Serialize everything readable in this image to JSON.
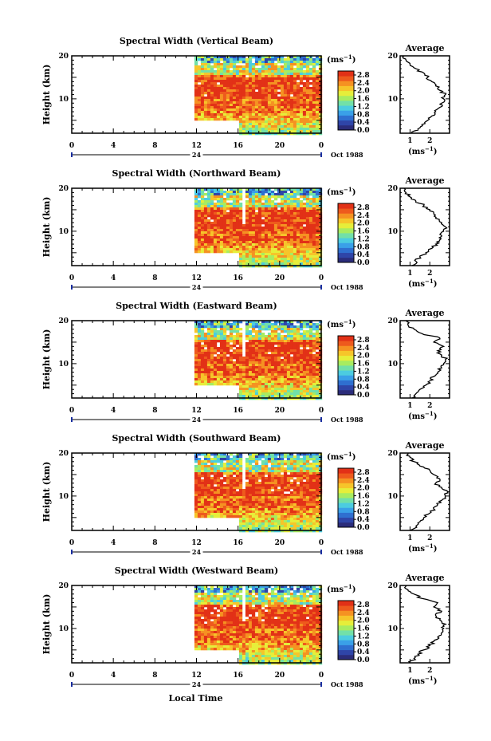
{
  "chart_data": [
    {
      "type": "heatmap",
      "title": "Spectral Width (Vertical Beam)",
      "ylabel": "Height (km)",
      "ylim": [
        2,
        20
      ],
      "y_ticks": [
        "20",
        "10"
      ],
      "x_ticks": [
        "0",
        "4",
        "8",
        "12",
        "16",
        "20",
        "0"
      ],
      "x_sublabel": "24",
      "date_label": "Oct 1988",
      "data_start_hour": 11.8,
      "data_lower_gap_end_hour": 16,
      "data_lower_gap_top_km": 5,
      "colorbar_unit": "(ms-1)",
      "colorbar_ticks": [
        "2.8",
        "2.4",
        "2.0",
        "1.6",
        "1.2",
        "0.8",
        "0.4",
        "0.0"
      ],
      "average_title": "Average",
      "average_xlabel": "(ms-1)",
      "average_x_ticks": [
        "1",
        "2"
      ],
      "average_y_ticks": [
        "20",
        "10"
      ],
      "average_profile": {
        "height": [
          2,
          3,
          4,
          5,
          6,
          7,
          8,
          9,
          10,
          11,
          12,
          13,
          14,
          15,
          16,
          17,
          18,
          19,
          20
        ],
        "width": [
          1.1,
          1.4,
          1.6,
          1.9,
          2.1,
          2.3,
          2.5,
          2.6,
          2.7,
          2.8,
          2.5,
          2.3,
          2.1,
          1.9,
          1.7,
          1.3,
          1.0,
          0.8,
          0.7
        ]
      }
    },
    {
      "type": "heatmap",
      "title": "Spectral Width (Northward Beam)",
      "ylabel": "Height (km)",
      "ylim": [
        2,
        20
      ],
      "y_ticks": [
        "20",
        "10"
      ],
      "x_ticks": [
        "0",
        "4",
        "8",
        "12",
        "16",
        "20",
        "0"
      ],
      "x_sublabel": "24",
      "date_label": "Oct 1988",
      "data_start_hour": 11.8,
      "data_lower_gap_end_hour": 16,
      "data_lower_gap_top_km": 5,
      "colorbar_unit": "(ms-1)",
      "colorbar_ticks": [
        "2.8",
        "2.4",
        "2.0",
        "1.6",
        "1.2",
        "0.8",
        "0.4",
        "0.0"
      ],
      "average_title": "Average",
      "average_xlabel": "(ms-1)",
      "average_x_ticks": [
        "1",
        "2"
      ],
      "average_y_ticks": [
        "20",
        "10"
      ],
      "average_profile": {
        "height": [
          2,
          3,
          4,
          5,
          6,
          7,
          8,
          9,
          10,
          11,
          12,
          13,
          14,
          15,
          16,
          17,
          18,
          19,
          20
        ],
        "width": [
          1.1,
          1.3,
          1.5,
          1.8,
          2.1,
          2.3,
          2.5,
          2.6,
          2.7,
          2.8,
          2.6,
          2.3,
          2.2,
          2.0,
          1.7,
          1.3,
          1.0,
          0.8,
          0.7
        ]
      }
    },
    {
      "type": "heatmap",
      "title": "Spectral Width (Eastward Beam)",
      "ylabel": "Height (km)",
      "ylim": [
        2,
        20
      ],
      "y_ticks": [
        "20",
        "10"
      ],
      "x_ticks": [
        "0",
        "4",
        "8",
        "12",
        "16",
        "20",
        "0"
      ],
      "x_sublabel": "24",
      "date_label": "Oct 1988",
      "data_start_hour": 11.8,
      "data_lower_gap_end_hour": 16,
      "data_lower_gap_top_km": 5,
      "colorbar_unit": "(ms-1)",
      "colorbar_ticks": [
        "2.8",
        "2.4",
        "2.0",
        "1.6",
        "1.2",
        "0.8",
        "0.4",
        "0.0"
      ],
      "average_title": "Average",
      "average_xlabel": "(ms-1)",
      "average_x_ticks": [
        "1",
        "2"
      ],
      "average_y_ticks": [
        "20",
        "10"
      ],
      "average_profile": {
        "height": [
          2,
          3,
          4,
          5,
          6,
          7,
          8,
          9,
          10,
          11,
          12,
          13,
          14,
          15,
          16,
          17,
          18,
          19,
          20
        ],
        "width": [
          1.1,
          1.3,
          1.5,
          1.8,
          2.0,
          2.2,
          2.4,
          2.6,
          2.7,
          2.8,
          2.6,
          2.4,
          2.7,
          2.2,
          2.5,
          1.6,
          1.2,
          0.9,
          0.8
        ]
      }
    },
    {
      "type": "heatmap",
      "title": "Spectral Width (Southward Beam)",
      "ylabel": "Height (km)",
      "ylim": [
        2,
        20
      ],
      "y_ticks": [
        "20",
        "10"
      ],
      "x_ticks": [
        "0",
        "4",
        "8",
        "12",
        "16",
        "20",
        "0"
      ],
      "x_sublabel": "24",
      "date_label": "Oct 1988",
      "data_start_hour": 11.8,
      "data_lower_gap_end_hour": 16,
      "data_lower_gap_top_km": 5,
      "colorbar_unit": "(ms-1)",
      "colorbar_ticks": [
        "2.8",
        "2.4",
        "2.0",
        "1.6",
        "1.2",
        "0.8",
        "0.4",
        "0.0"
      ],
      "average_title": "Average",
      "average_xlabel": "(ms-1)",
      "average_x_ticks": [
        "1",
        "2"
      ],
      "average_y_ticks": [
        "20",
        "10"
      ],
      "average_profile": {
        "height": [
          2,
          3,
          4,
          5,
          6,
          7,
          8,
          9,
          10,
          11,
          12,
          13,
          14,
          15,
          16,
          17,
          18,
          19,
          20
        ],
        "width": [
          1.0,
          1.3,
          1.5,
          1.7,
          2.0,
          2.2,
          2.4,
          2.6,
          2.8,
          2.9,
          2.6,
          2.3,
          2.5,
          2.2,
          2.0,
          1.5,
          1.2,
          1.0,
          0.9
        ]
      }
    },
    {
      "type": "heatmap",
      "title": "Spectral Width (Westward Beam)",
      "ylabel": "Height (km)",
      "ylim": [
        2,
        20
      ],
      "y_ticks": [
        "20",
        "10"
      ],
      "x_ticks": [
        "0",
        "4",
        "8",
        "12",
        "16",
        "20",
        "0"
      ],
      "x_sublabel": "24",
      "date_label": "Oct 1988",
      "data_start_hour": 11.8,
      "data_lower_gap_end_hour": 16,
      "data_lower_gap_top_km": 5,
      "colorbar_unit": "(ms-1)",
      "colorbar_ticks": [
        "2.8",
        "2.4",
        "2.0",
        "1.6",
        "1.2",
        "0.8",
        "0.4",
        "0.0"
      ],
      "average_title": "Average",
      "average_xlabel": "(ms-1)",
      "average_x_ticks": [
        "1",
        "2"
      ],
      "average_y_ticks": [
        "20",
        "10"
      ],
      "average_profile": {
        "height": [
          2,
          3,
          4,
          5,
          6,
          7,
          8,
          9,
          10,
          11,
          12,
          13,
          14,
          15,
          16,
          17,
          18,
          19,
          20
        ],
        "width": [
          1.0,
          1.2,
          1.4,
          1.7,
          2.0,
          2.2,
          2.4,
          2.6,
          2.7,
          2.8,
          2.5,
          2.3,
          2.6,
          2.2,
          2.4,
          1.6,
          1.2,
          0.9,
          0.8
        ]
      }
    }
  ],
  "xlabel": "Local Time",
  "colorscale": [
    "#2b2c7a",
    "#2f45a8",
    "#2f6fd0",
    "#3aa0e8",
    "#4ccce0",
    "#72e0a8",
    "#a8ec60",
    "#e6ee3a",
    "#f6c52a",
    "#f59222",
    "#ee5a1d",
    "#e23117"
  ]
}
